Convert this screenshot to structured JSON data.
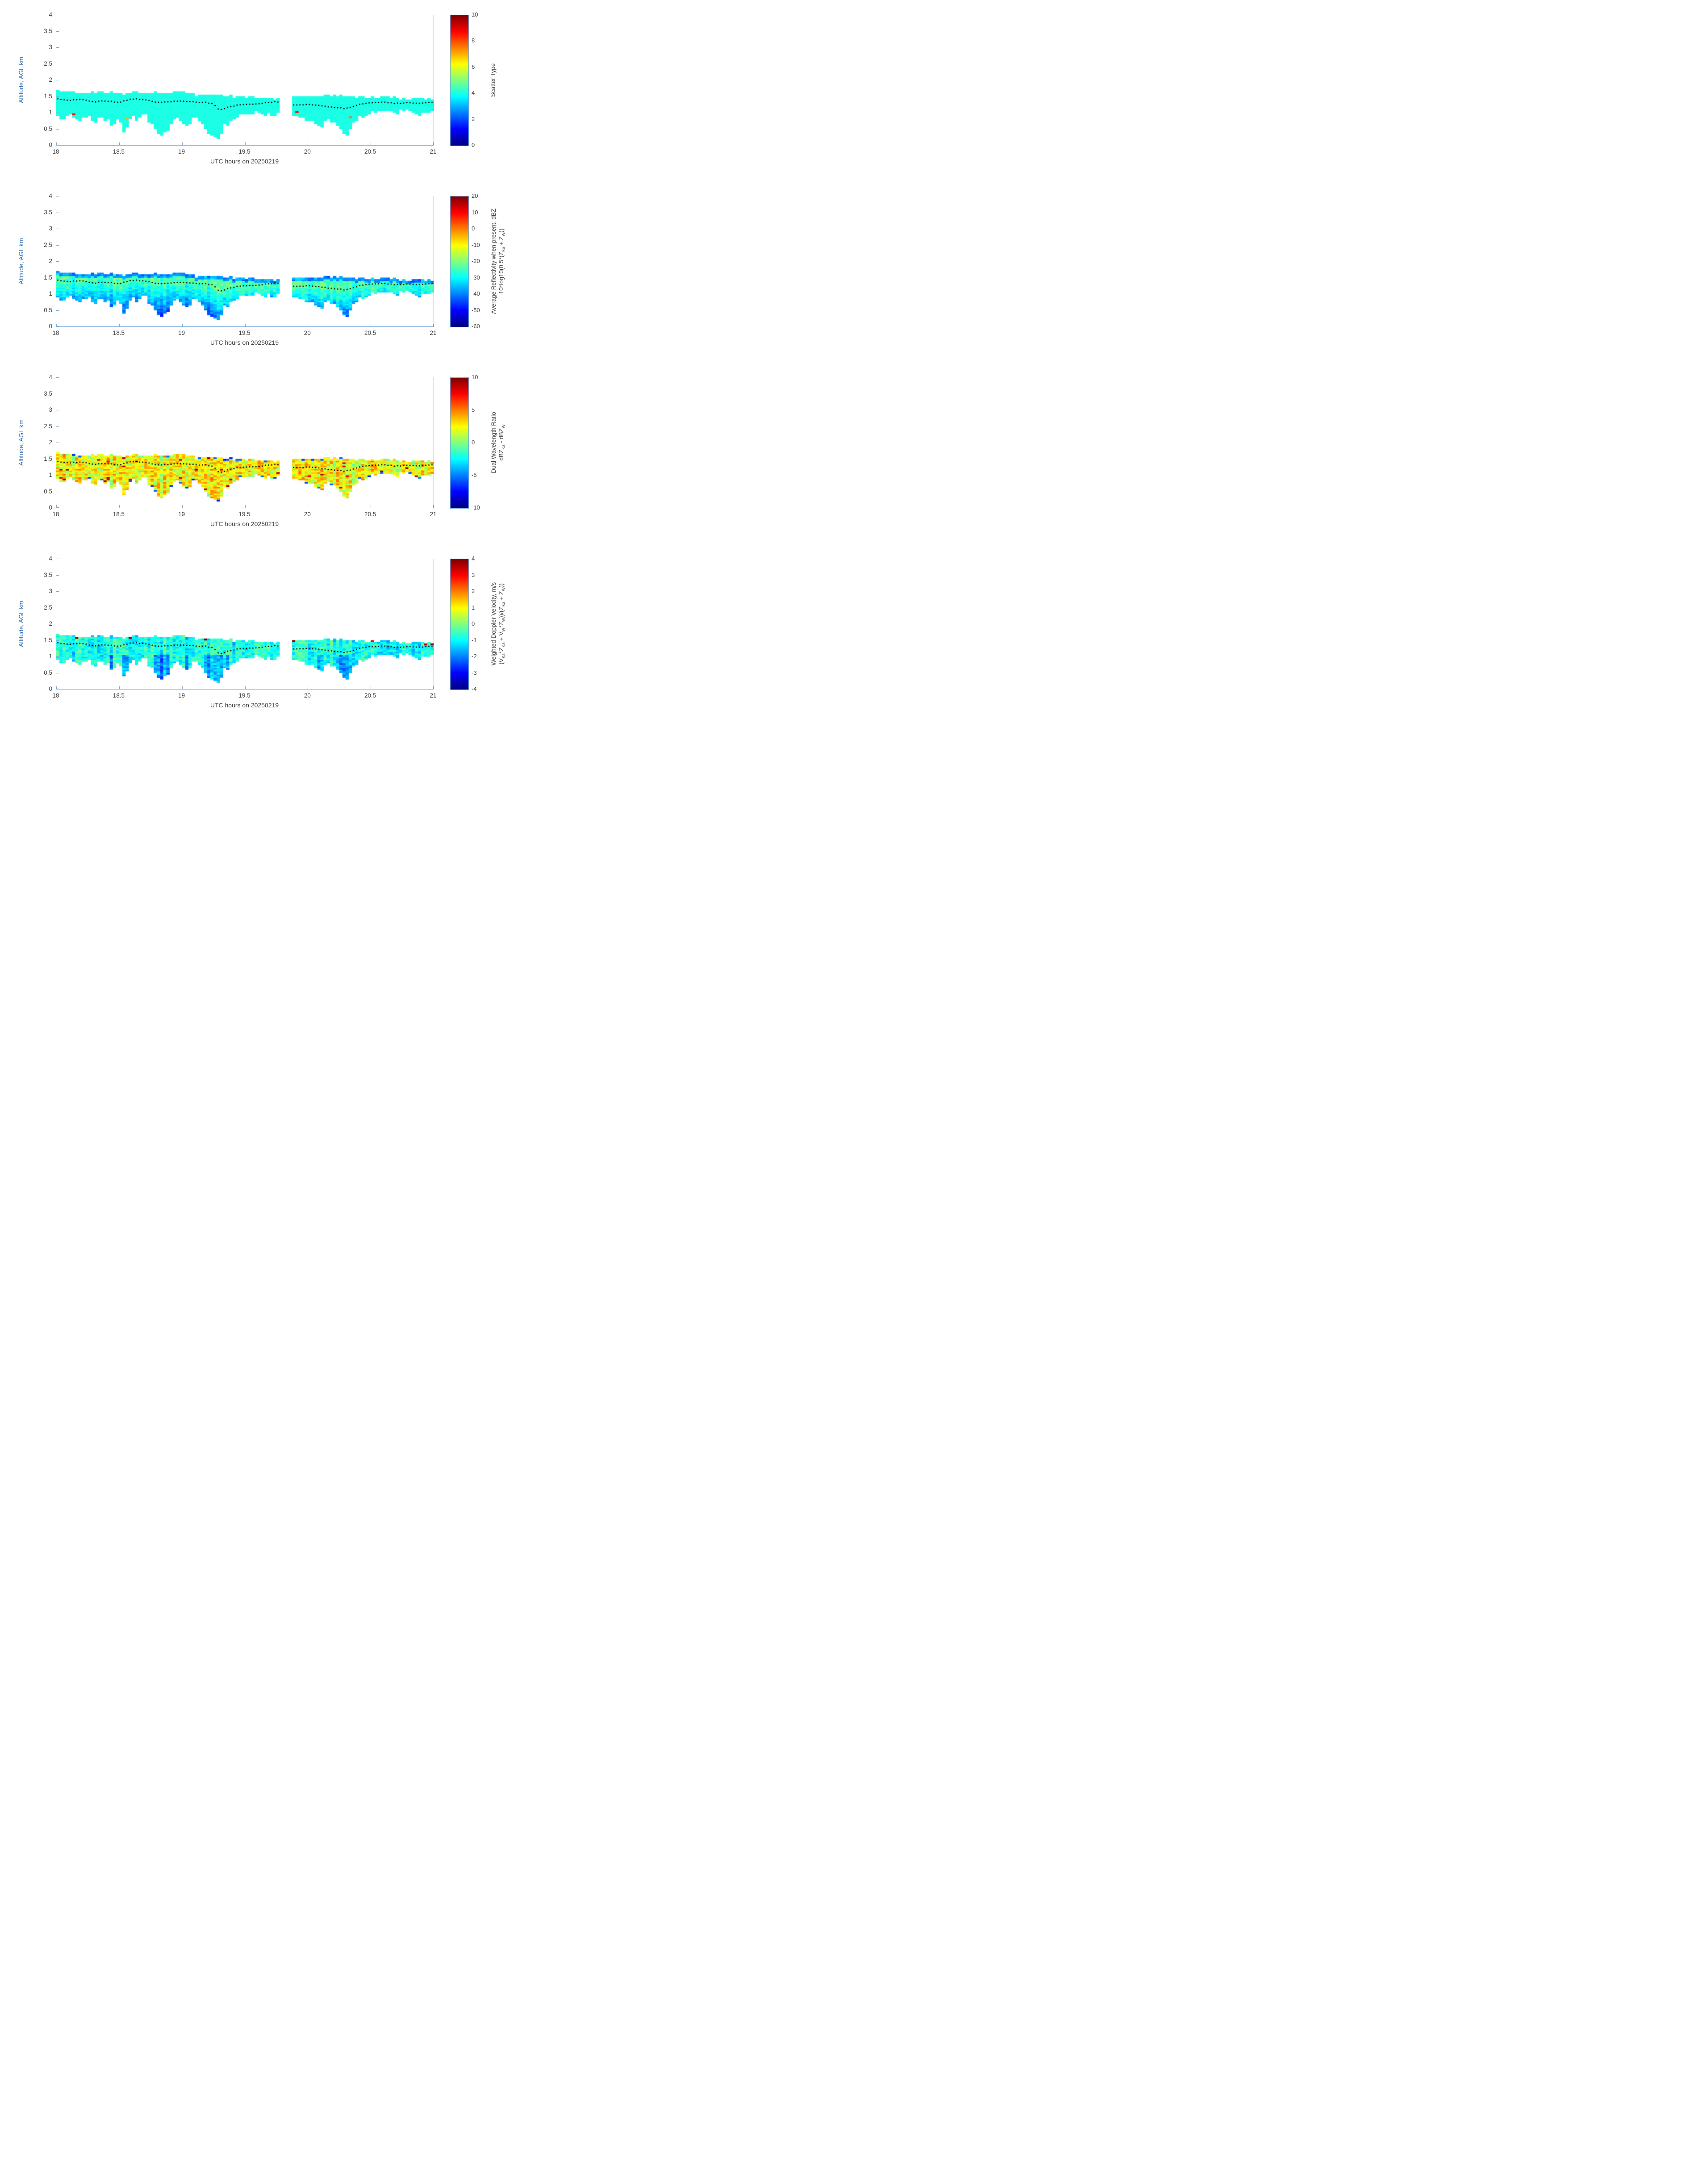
{
  "style": {
    "background": "#ffffff",
    "axis_color": "#74a9d8",
    "axis_label_color": "#2f6eb3",
    "tick_label_color": "#3f3f3f",
    "mean_line_color": "#000000"
  },
  "chart_data": {
    "type": "heatmap",
    "colormap": "jet",
    "x": {
      "min": 18,
      "max": 21,
      "ticks": [
        18,
        18.5,
        19,
        19.5,
        20,
        20.5,
        21
      ],
      "label": "UTC hours on 20250219"
    },
    "y": {
      "min": 0,
      "max": 4,
      "ticks": [
        0,
        0.5,
        1,
        1.5,
        2,
        2.5,
        3,
        3.5,
        4
      ],
      "label": "Altitude, AGL km"
    },
    "time_step_hours": 0.025,
    "altitude_step_km": 0.05,
    "data_gap_hours": [
      19.775,
      19.875
    ],
    "cloud_top_km": [
      [
        18.0,
        1.68
      ],
      [
        18.1,
        1.62
      ],
      [
        18.2,
        1.6
      ],
      [
        18.3,
        1.62
      ],
      [
        18.4,
        1.6
      ],
      [
        18.5,
        1.62
      ],
      [
        18.55,
        1.55
      ],
      [
        18.6,
        1.62
      ],
      [
        18.7,
        1.6
      ],
      [
        18.8,
        1.65
      ],
      [
        18.9,
        1.6
      ],
      [
        18.95,
        1.68
      ],
      [
        19.0,
        1.65
      ],
      [
        19.05,
        1.6
      ],
      [
        19.1,
        1.55
      ],
      [
        19.2,
        1.52
      ],
      [
        19.3,
        1.55
      ],
      [
        19.4,
        1.5
      ],
      [
        19.5,
        1.48
      ],
      [
        19.6,
        1.47
      ],
      [
        19.7,
        1.45
      ],
      [
        19.78,
        1.45
      ],
      [
        19.88,
        1.5
      ],
      [
        20.0,
        1.5
      ],
      [
        20.1,
        1.52
      ],
      [
        20.2,
        1.55
      ],
      [
        20.3,
        1.5
      ],
      [
        20.4,
        1.48
      ],
      [
        20.5,
        1.45
      ],
      [
        20.6,
        1.48
      ],
      [
        20.7,
        1.45
      ],
      [
        20.8,
        1.42
      ],
      [
        20.9,
        1.45
      ],
      [
        21.0,
        1.42
      ]
    ],
    "cloud_base_km": [
      [
        18.0,
        0.95
      ],
      [
        18.05,
        0.75
      ],
      [
        18.1,
        0.95
      ],
      [
        18.15,
        0.9
      ],
      [
        18.2,
        0.8
      ],
      [
        18.25,
        0.95
      ],
      [
        18.3,
        0.65
      ],
      [
        18.35,
        0.9
      ],
      [
        18.4,
        0.8
      ],
      [
        18.45,
        0.55
      ],
      [
        18.5,
        0.85
      ],
      [
        18.55,
        0.25
      ],
      [
        18.58,
        0.85
      ],
      [
        18.65,
        0.8
      ],
      [
        18.7,
        0.95
      ],
      [
        18.75,
        0.7
      ],
      [
        18.8,
        0.45
      ],
      [
        18.85,
        0.3
      ],
      [
        18.9,
        0.55
      ],
      [
        18.95,
        0.9
      ],
      [
        19.0,
        0.7
      ],
      [
        19.05,
        0.65
      ],
      [
        19.1,
        0.85
      ],
      [
        19.15,
        0.75
      ],
      [
        19.2,
        0.45
      ],
      [
        19.25,
        0.25
      ],
      [
        19.3,
        0.2
      ],
      [
        19.33,
        0.6
      ],
      [
        19.38,
        0.7
      ],
      [
        19.42,
        0.85
      ],
      [
        19.5,
        0.95
      ],
      [
        19.6,
        1.0
      ],
      [
        19.7,
        0.95
      ],
      [
        19.78,
        0.95
      ],
      [
        19.88,
        0.9
      ],
      [
        19.95,
        0.8
      ],
      [
        20.0,
        0.75
      ],
      [
        20.05,
        0.65
      ],
      [
        20.1,
        0.55
      ],
      [
        20.15,
        0.8
      ],
      [
        20.2,
        0.75
      ],
      [
        20.25,
        0.5
      ],
      [
        20.3,
        0.28
      ],
      [
        20.35,
        0.55
      ],
      [
        20.4,
        0.85
      ],
      [
        20.5,
        1.0
      ],
      [
        20.6,
        1.05
      ],
      [
        20.7,
        1.0
      ],
      [
        20.8,
        1.05
      ],
      [
        20.9,
        0.95
      ],
      [
        21.0,
        1.05
      ]
    ],
    "mean_altitude_km": [
      [
        18.0,
        1.42
      ],
      [
        18.1,
        1.38
      ],
      [
        18.2,
        1.41
      ],
      [
        18.3,
        1.33
      ],
      [
        18.4,
        1.36
      ],
      [
        18.5,
        1.31
      ],
      [
        18.6,
        1.42
      ],
      [
        18.7,
        1.4
      ],
      [
        18.8,
        1.31
      ],
      [
        18.9,
        1.33
      ],
      [
        19.0,
        1.36
      ],
      [
        19.1,
        1.32
      ],
      [
        19.2,
        1.31
      ],
      [
        19.25,
        1.26
      ],
      [
        19.3,
        1.06
      ],
      [
        19.35,
        1.15
      ],
      [
        19.45,
        1.24
      ],
      [
        19.55,
        1.26
      ],
      [
        19.65,
        1.29
      ],
      [
        19.75,
        1.34
      ],
      [
        19.9,
        1.22
      ],
      [
        20.0,
        1.25
      ],
      [
        20.1,
        1.21
      ],
      [
        20.2,
        1.17
      ],
      [
        20.3,
        1.12
      ],
      [
        20.4,
        1.24
      ],
      [
        20.5,
        1.3
      ],
      [
        20.6,
        1.32
      ],
      [
        20.7,
        1.28
      ],
      [
        20.8,
        1.3
      ],
      [
        20.9,
        1.28
      ],
      [
        21.0,
        1.33
      ]
    ],
    "panels": [
      {
        "name": "scatter-type",
        "colorbar": {
          "min": 0,
          "max": 10,
          "ticks": [
            0,
            2,
            4,
            6,
            8,
            10
          ],
          "label_lines": [
            "Scatter Type"
          ]
        },
        "field": {
          "type": "uniform",
          "value": 4,
          "speck_prob": 0,
          "speck_value": 8,
          "specks": [
            [
              18.13,
              0.95,
              8.5
            ],
            [
              18.56,
              0.82,
              7
            ],
            [
              19.91,
              1.02,
              8.5
            ],
            [
              20.33,
              0.86,
              7.5
            ]
          ]
        }
      },
      {
        "name": "average-reflectivity",
        "colorbar": {
          "min": -60,
          "max": 20,
          "ticks": [
            -60,
            -50,
            -40,
            -30,
            -20,
            -10,
            0,
            10,
            20
          ],
          "label_lines": [
            "Average Reflectivity when present, dBZ",
            "10*log10(0.5*(Z_{Ka} + Z_{W}))"
          ]
        },
        "field": {
          "type": "depth_fade",
          "value_at_line": -24,
          "depth_slope": -22,
          "column_noise": 3,
          "cell_noise": 4,
          "top_rim_delta": -14,
          "clamp": [
            -58,
            -18
          ]
        }
      },
      {
        "name": "dual-wavelength-ratio",
        "colorbar": {
          "min": -10,
          "max": 10,
          "ticks": [
            -10,
            -5,
            0,
            5,
            10
          ],
          "label_lines": [
            "Dual Wavelength Ratio",
            "dBZ_{Ka} - dBZ_{W}"
          ]
        },
        "field": {
          "type": "noisy_mean",
          "mean": 2.4,
          "column_noise": 1.1,
          "cell_noise": 2.2,
          "edge_low_prob": 0.15,
          "edge_low_value": -5,
          "speck_high_prob": 0.025,
          "speck_high_value": 7.5
        }
      },
      {
        "name": "weighted-doppler-velocity",
        "colorbar": {
          "min": -4,
          "max": 4,
          "ticks": [
            -4,
            -3,
            -2,
            -1,
            0,
            1,
            2,
            3,
            4
          ],
          "label_lines": [
            "Weighted Doppler Velocity, m/s",
            "(V_{Ka}*Z_{Ka} + V_{W}*Z_{W}))/(Z_{Ka} + Z_{W}))"
          ]
        },
        "field": {
          "type": "noisy_mean",
          "mean": -0.85,
          "column_noise": 0.45,
          "cell_noise": 0.55,
          "streak_delta": -0.95,
          "edge_low_prob": 0,
          "edge_low_value": -2.5,
          "speck_high_prob": 0.06,
          "speck_high_value": 3,
          "speck_top_only": true
        }
      }
    ]
  }
}
